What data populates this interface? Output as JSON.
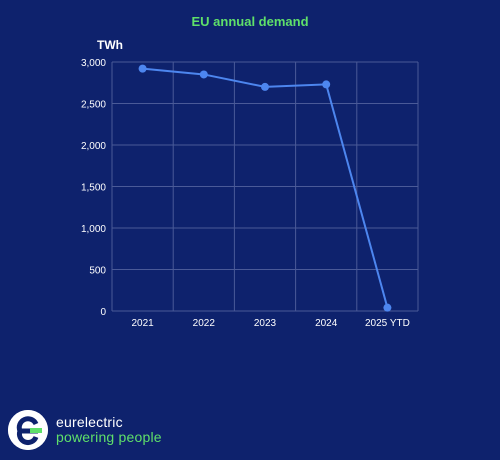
{
  "chart_data": {
    "type": "line",
    "title": "EU annual demand",
    "unit_label": "TWh",
    "xlabel": "",
    "ylabel": "",
    "categories": [
      "2021",
      "2022",
      "2023",
      "2024",
      "2025 YTD"
    ],
    "series": [
      {
        "values": [
          2920,
          2850,
          2700,
          2730,
          40
        ]
      }
    ],
    "ylim": [
      0,
      3000
    ],
    "yticks": [
      0,
      500,
      1000,
      1500,
      2000,
      2500,
      3000
    ],
    "ytick_labels": [
      "0",
      "500",
      "1,000",
      "1,500",
      "2,000",
      "2,500",
      "3,000"
    ],
    "grid": true,
    "colors": {
      "background": "#0e226d",
      "line": "#4d86ef",
      "title": "#5fe06a",
      "grid": "#4a5a98",
      "text": "#ffffff"
    }
  },
  "branding": {
    "name": "eurelectric",
    "tagline": "powering people",
    "accent": "#5fe06a"
  }
}
